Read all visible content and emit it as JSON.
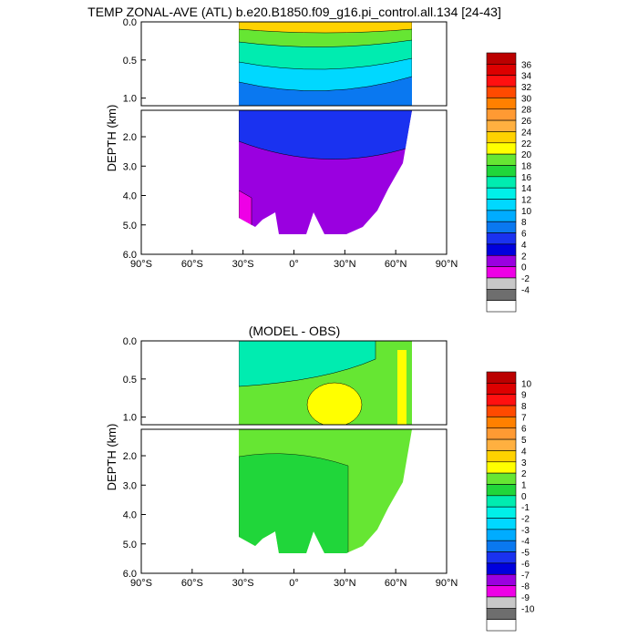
{
  "chart_data": [
    {
      "type": "heatmap",
      "title": "TEMP ZONAL-AVE (ATL) b.e20.B1850.f09_g16.pi_control.all.134 [24-43]",
      "xlabel": "",
      "ylabel": "DEPTH (km)",
      "x_ticks": [
        "90°S",
        "60°S",
        "30°S",
        "0°",
        "30°N",
        "60°N",
        "90°N"
      ],
      "x_range_deg": [
        -90,
        90
      ],
      "y_ticks_upper": [
        "0.0",
        "0.5",
        "1.0"
      ],
      "y_ticks_lower": [
        "2.0",
        "3.0",
        "4.0",
        "5.0",
        "6.0"
      ],
      "y_range_km_upper": [
        0,
        1.1
      ],
      "y_range_km_lower": [
        1.1,
        6.0
      ],
      "colorbar_levels": [
        "36",
        "34",
        "32",
        "30",
        "28",
        "26",
        "24",
        "22",
        "20",
        "18",
        "16",
        "14",
        "12",
        "10",
        "8",
        "6",
        "4",
        "2",
        "0",
        "-2",
        "-4"
      ],
      "colorbar_colors": [
        "#bb0000",
        "#dd0000",
        "#ff1010",
        "#ff4a00",
        "#ff8000",
        "#ff9a33",
        "#ffb040",
        "#ffd200",
        "#ffff00",
        "#66e633",
        "#20d63a",
        "#00ecb0",
        "#00f0e8",
        "#00d8ff",
        "#00acff",
        "#0a78f0",
        "#1a32f0",
        "#0000dd",
        "#9a00e0",
        "#ee00e6",
        "#c8c8c8",
        "#6e6e6e",
        "#ffffff"
      ],
      "series": [
        {
          "name": "",
          "depth_km": [
            0.0,
            0.5,
            1.0,
            2.0,
            3.0,
            4.0,
            5.0
          ],
          "values_at_0deg": [
            22,
            12,
            6,
            4,
            2,
            2,
            2
          ]
        }
      ]
    },
    {
      "type": "heatmap",
      "title": "(MODEL - OBS)",
      "xlabel": "",
      "ylabel": "DEPTH (km)",
      "x_ticks": [
        "90°S",
        "60°S",
        "30°S",
        "0°",
        "30°N",
        "60°N",
        "90°N"
      ],
      "x_range_deg": [
        -90,
        90
      ],
      "y_ticks_upper": [
        "0.0",
        "0.5",
        "1.0"
      ],
      "y_ticks_lower": [
        "2.0",
        "3.0",
        "4.0",
        "5.0",
        "6.0"
      ],
      "y_range_km_upper": [
        0,
        1.1
      ],
      "y_range_km_lower": [
        1.1,
        6.0
      ],
      "colorbar_levels": [
        "10",
        "9",
        "8",
        "7",
        "6",
        "5",
        "4",
        "3",
        "2",
        "1",
        "0",
        "-1",
        "-2",
        "-3",
        "-4",
        "-5",
        "-6",
        "-7",
        "-8",
        "-9",
        "-10"
      ],
      "colorbar_colors": [
        "#bb0000",
        "#dd0000",
        "#ff1010",
        "#ff4a00",
        "#ff8000",
        "#ff9a33",
        "#ffb040",
        "#ffd200",
        "#ffff00",
        "#66e633",
        "#20d63a",
        "#00ecb0",
        "#00f0e8",
        "#00d8ff",
        "#00acff",
        "#0a78f0",
        "#1a32f0",
        "#0000dd",
        "#9a00e0",
        "#ee00e6",
        "#c8c8c8",
        "#6e6e6e",
        "#ffffff"
      ],
      "series": [
        {
          "name": "",
          "depth_km": [
            0.0,
            0.5,
            1.0,
            2.0,
            3.0,
            4.0,
            5.0
          ],
          "values_at_0deg": [
            -1,
            1,
            2,
            1,
            1,
            1,
            1
          ]
        }
      ]
    }
  ]
}
